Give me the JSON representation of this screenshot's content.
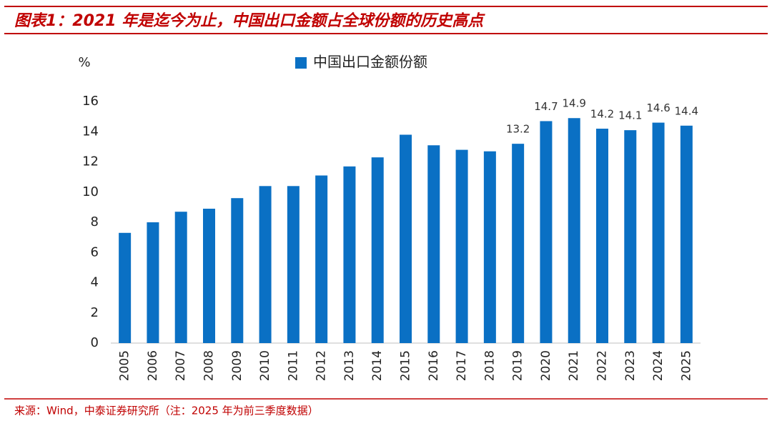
{
  "chart_data": {
    "type": "bar",
    "title": "图表1：2021 年是迄今为止，中国出口金额占全球份额的历史高点",
    "y_label": "%",
    "categories": [
      "2005",
      "2006",
      "2007",
      "2008",
      "2009",
      "2010",
      "2011",
      "2012",
      "2013",
      "2014",
      "2015",
      "2016",
      "2017",
      "2018",
      "2019",
      "2020",
      "2021",
      "2022",
      "2023",
      "2024",
      "2025"
    ],
    "series": [
      {
        "name": "中国出口金额份额",
        "color": "#0a70c4",
        "values": [
          7.3,
          8.0,
          8.7,
          8.9,
          9.6,
          10.4,
          10.4,
          11.1,
          11.7,
          12.3,
          13.8,
          13.1,
          12.8,
          12.7,
          13.2,
          14.7,
          14.9,
          14.2,
          14.1,
          14.6,
          14.4
        ],
        "value_labels": [
          null,
          null,
          null,
          null,
          null,
          null,
          null,
          null,
          null,
          null,
          null,
          null,
          null,
          null,
          "13.2",
          "14.7",
          "14.9",
          "14.2",
          "14.1",
          "14.6",
          "14.4"
        ]
      }
    ],
    "ylim": [
      0,
      16
    ],
    "yticks": [
      0,
      2,
      4,
      6,
      8,
      10,
      12,
      14,
      16
    ],
    "grid": false,
    "source": "来源：Wind，中泰证券研究所（注：2025 年为前三季度数据）"
  }
}
